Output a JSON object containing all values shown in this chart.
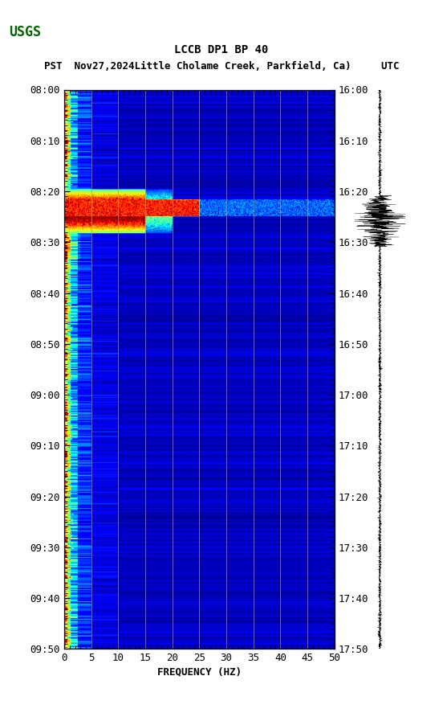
{
  "title_line1": "LCCB DP1 BP 40",
  "title_line2": "PST  Nov27,2024Little Cholame Creek, Parkfield, Ca)     UTC",
  "xlabel": "FREQUENCY (HZ)",
  "freq_min": 0,
  "freq_max": 50,
  "ytick_labels_left": [
    "08:00",
    "08:10",
    "08:20",
    "08:30",
    "08:40",
    "08:50",
    "09:00",
    "09:10",
    "09:20",
    "09:30",
    "09:40",
    "09:50"
  ],
  "ytick_labels_right": [
    "16:00",
    "16:10",
    "16:20",
    "16:30",
    "16:40",
    "16:50",
    "17:00",
    "17:10",
    "17:20",
    "17:30",
    "17:40",
    "17:50"
  ],
  "grid_color": "#c8a050",
  "fig_bg": "#ffffff",
  "title_fontsize": 10,
  "subtitle_fontsize": 9,
  "tick_fontsize": 9,
  "label_fontsize": 9
}
